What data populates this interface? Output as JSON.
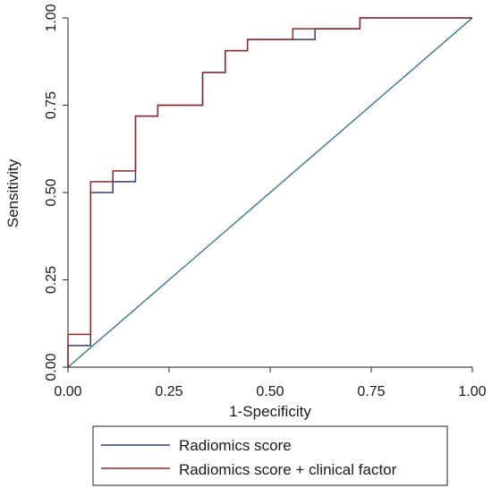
{
  "chart_data": {
    "type": "line",
    "title": "",
    "xlabel": "1-Specificity",
    "ylabel": "Sensitivity",
    "xlim": [
      0,
      1
    ],
    "ylim": [
      0,
      1
    ],
    "grid": false,
    "legend_position": "bottom",
    "x_tick_labels": [
      "0.00",
      "0.25",
      "0.50",
      "0.75",
      "1.00"
    ],
    "y_tick_labels": [
      "0.00",
      "0.25",
      "0.50",
      "0.75",
      "1.00"
    ],
    "series": [
      {
        "name": "Radiomics score",
        "color": "#2e3f6e",
        "step": true,
        "points": [
          [
            0.0,
            0.0
          ],
          [
            0.0,
            0.062
          ],
          [
            0.056,
            0.062
          ],
          [
            0.056,
            0.5
          ],
          [
            0.111,
            0.5
          ],
          [
            0.111,
            0.531
          ],
          [
            0.167,
            0.531
          ],
          [
            0.167,
            0.719
          ],
          [
            0.222,
            0.719
          ],
          [
            0.222,
            0.75
          ],
          [
            0.333,
            0.75
          ],
          [
            0.333,
            0.844
          ],
          [
            0.389,
            0.844
          ],
          [
            0.389,
            0.906
          ],
          [
            0.444,
            0.906
          ],
          [
            0.444,
            0.938
          ],
          [
            0.611,
            0.938
          ],
          [
            0.611,
            0.969
          ],
          [
            0.722,
            0.969
          ],
          [
            0.722,
            1.0
          ],
          [
            1.0,
            1.0
          ]
        ]
      },
      {
        "name": "Radiomics score + clinical factor",
        "color": "#8b2d2a",
        "step": true,
        "points": [
          [
            0.0,
            0.0
          ],
          [
            0.0,
            0.094
          ],
          [
            0.056,
            0.094
          ],
          [
            0.056,
            0.531
          ],
          [
            0.111,
            0.531
          ],
          [
            0.111,
            0.562
          ],
          [
            0.167,
            0.562
          ],
          [
            0.167,
            0.719
          ],
          [
            0.222,
            0.719
          ],
          [
            0.222,
            0.75
          ],
          [
            0.333,
            0.75
          ],
          [
            0.333,
            0.844
          ],
          [
            0.389,
            0.844
          ],
          [
            0.389,
            0.906
          ],
          [
            0.444,
            0.906
          ],
          [
            0.444,
            0.938
          ],
          [
            0.556,
            0.938
          ],
          [
            0.556,
            0.969
          ],
          [
            0.722,
            0.969
          ],
          [
            0.722,
            1.0
          ],
          [
            1.0,
            1.0
          ]
        ]
      }
    ],
    "reference_line": {
      "color": "#2f6f80",
      "points": [
        [
          0,
          0
        ],
        [
          1,
          1
        ]
      ]
    }
  }
}
